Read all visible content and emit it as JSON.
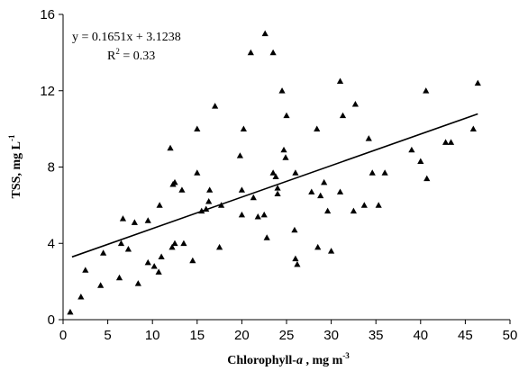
{
  "chart_data": {
    "type": "scatter",
    "xlabel": "Chlorophyll-a , mg m-3",
    "xlabel_parts": {
      "main": "Chlorophyll-",
      "italic": "a",
      "rest": " , mg m",
      "sup": "-3"
    },
    "ylabel": "TSS, mg L-1",
    "ylabel_parts": {
      "main": "TSS, mg L",
      "sup": "-1"
    },
    "xlim": [
      0,
      50
    ],
    "ylim": [
      0,
      16
    ],
    "x_ticks": [
      0,
      5,
      10,
      15,
      20,
      25,
      30,
      35,
      40,
      45,
      50
    ],
    "y_ticks": [
      0,
      4,
      8,
      12,
      16
    ],
    "grid": false,
    "marker": "triangle",
    "annotations": {
      "equation": "y = 0.1651x + 3.1238",
      "r2_label": "R",
      "r2_sup": "2",
      "r2_value": " = 0.33"
    },
    "trendline": {
      "slope": 0.1651,
      "intercept": 3.1238,
      "x_range": [
        1,
        46.4
      ]
    },
    "points": [
      [
        0.8,
        0.4
      ],
      [
        2.0,
        1.2
      ],
      [
        2.5,
        2.6
      ],
      [
        4.2,
        1.8
      ],
      [
        4.5,
        3.5
      ],
      [
        6.3,
        2.2
      ],
      [
        6.5,
        4.0
      ],
      [
        6.7,
        5.3
      ],
      [
        7.3,
        3.7
      ],
      [
        8.0,
        5.1
      ],
      [
        8.4,
        1.9
      ],
      [
        9.5,
        5.2
      ],
      [
        9.5,
        3.0
      ],
      [
        10.2,
        2.8
      ],
      [
        10.7,
        2.5
      ],
      [
        10.8,
        6.0
      ],
      [
        11.0,
        3.3
      ],
      [
        12.0,
        9.0
      ],
      [
        12.2,
        3.8
      ],
      [
        12.3,
        7.1
      ],
      [
        12.5,
        4.0
      ],
      [
        12.5,
        7.2
      ],
      [
        13.3,
        6.8
      ],
      [
        13.5,
        4.0
      ],
      [
        14.5,
        3.1
      ],
      [
        15.0,
        10.0
      ],
      [
        15.0,
        7.7
      ],
      [
        15.5,
        5.7
      ],
      [
        16.0,
        5.8
      ],
      [
        16.3,
        6.2
      ],
      [
        16.4,
        6.8
      ],
      [
        17.0,
        11.2
      ],
      [
        17.5,
        3.8
      ],
      [
        17.7,
        6.0
      ],
      [
        19.8,
        8.6
      ],
      [
        20.0,
        6.8
      ],
      [
        20.0,
        5.5
      ],
      [
        20.2,
        10.0
      ],
      [
        21.0,
        14.0
      ],
      [
        21.3,
        6.4
      ],
      [
        21.8,
        5.4
      ],
      [
        22.5,
        5.5
      ],
      [
        22.6,
        15.0
      ],
      [
        22.8,
        4.3
      ],
      [
        23.5,
        14.0
      ],
      [
        23.5,
        7.7
      ],
      [
        23.8,
        7.5
      ],
      [
        24.0,
        6.9
      ],
      [
        24.0,
        6.6
      ],
      [
        24.5,
        12.0
      ],
      [
        24.7,
        8.9
      ],
      [
        24.9,
        8.5
      ],
      [
        25.0,
        10.7
      ],
      [
        25.9,
        4.7
      ],
      [
        26.0,
        7.7
      ],
      [
        26.0,
        3.2
      ],
      [
        26.2,
        2.9
      ],
      [
        27.8,
        6.7
      ],
      [
        28.4,
        10.0
      ],
      [
        28.5,
        3.8
      ],
      [
        28.8,
        6.5
      ],
      [
        29.2,
        7.2
      ],
      [
        29.6,
        5.7
      ],
      [
        30.0,
        3.6
      ],
      [
        31.0,
        6.7
      ],
      [
        31.0,
        12.5
      ],
      [
        31.3,
        10.7
      ],
      [
        32.5,
        5.7
      ],
      [
        32.7,
        11.3
      ],
      [
        33.7,
        6.0
      ],
      [
        34.2,
        9.5
      ],
      [
        34.6,
        7.7
      ],
      [
        35.3,
        6.0
      ],
      [
        36.0,
        7.7
      ],
      [
        39.0,
        8.9
      ],
      [
        40.0,
        8.3
      ],
      [
        40.6,
        12.0
      ],
      [
        40.7,
        7.4
      ],
      [
        42.8,
        9.3
      ],
      [
        43.4,
        9.3
      ],
      [
        45.9,
        10.0
      ],
      [
        46.4,
        12.4
      ]
    ]
  }
}
